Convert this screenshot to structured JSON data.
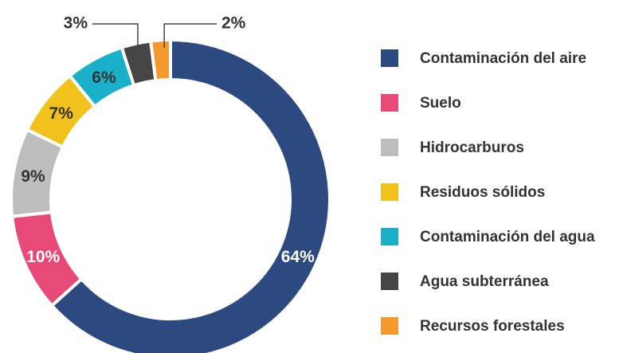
{
  "chart_data": {
    "type": "donut",
    "categories": [
      "Contaminación del aire",
      "Suelo",
      "Hidrocarburos",
      "Residuos sólidos",
      "Contaminación del agua",
      "Agua subterránea",
      "Recursos forestales"
    ],
    "values": [
      64,
      10,
      9,
      7,
      6,
      3,
      2
    ],
    "value_labels": [
      "64%",
      "10%",
      "9%",
      "7%",
      "6%",
      "3%",
      "2%"
    ],
    "colors": [
      "#2d4a80",
      "#e84a78",
      "#bdbdbd",
      "#f1c21b",
      "#1ab0c9",
      "#454545",
      "#f49a2d"
    ],
    "legend": "right"
  }
}
